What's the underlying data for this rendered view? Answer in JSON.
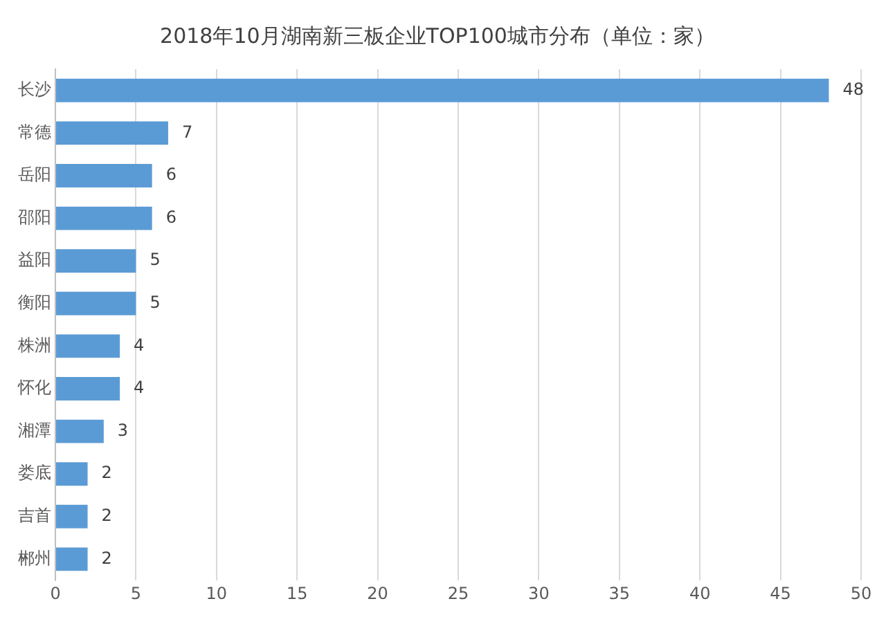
{
  "chart_data": {
    "type": "bar",
    "orientation": "horizontal",
    "title": "2018年10月湖南新三板企业TOP100城市分布（单位：家）",
    "categories": [
      "长沙",
      "常德",
      "岳阳",
      "邵阳",
      "益阳",
      "衡阳",
      "株洲",
      "怀化",
      "湘潭",
      "娄底",
      "吉首",
      "郴州"
    ],
    "values": [
      48,
      7,
      6,
      6,
      5,
      5,
      4,
      4,
      3,
      2,
      2,
      2
    ],
    "color": "#5b9bd5",
    "xlim": [
      0,
      50
    ],
    "xticks": [
      0,
      5,
      10,
      15,
      20,
      25,
      30,
      35,
      40,
      45,
      50
    ],
    "grid": "x",
    "data_labels": true
  }
}
